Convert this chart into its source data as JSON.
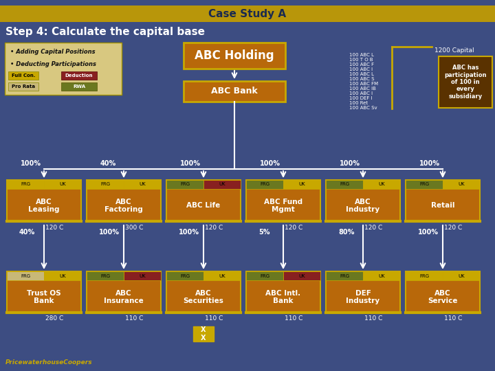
{
  "title": "Case Study A",
  "subtitle": "Step 4: Calculate the capital base",
  "bg_color": "#3d4d82",
  "title_bg": "#b8960a",
  "title_fg": "#1a2a50",
  "orange_box": "#b8680a",
  "dark_brown_box": "#5a3200",
  "legend_bg": "#d8c880",
  "gold": "#c8a800",
  "tan": "#c8b878",
  "dark_red": "#882020",
  "olive": "#6a7820",
  "bullet_text": [
    "Adding Capital Positions",
    "Deducting Participations"
  ],
  "holding_label": "ABC Holding",
  "bank_label": "ABC Bank",
  "note_lines": [
    "100 ABC L",
    "100 T O B",
    "100 ABC F",
    "100 ABC I",
    "100 ABC L",
    "100 ABC S",
    "100 ABC FM",
    "100 ABC IB",
    "100 ABC I",
    "100 DEF I",
    "100 Ret",
    "100 ABC Sv"
  ],
  "capital_label": "1200 Capital",
  "side_note": "ABC has\nparticipation\nof 100 in\nevery\nsubsidiary",
  "level1": [
    {
      "name": "ABC\nLeasing",
      "pct": "100%",
      "capital": "120 C",
      "frg": "#c8a800",
      "uk": "#c8a800"
    },
    {
      "name": "ABC\nFactoring",
      "pct": "40%",
      "capital": "300 C",
      "frg": "#c8a800",
      "uk": "#c8a800"
    },
    {
      "name": "ABC Life",
      "pct": "100%",
      "capital": "120 C",
      "frg": "#6a7820",
      "uk": "#882020"
    },
    {
      "name": "ABC Fund\nMgmt",
      "pct": "100%",
      "capital": "120 C",
      "frg": "#6a7820",
      "uk": "#c8a800"
    },
    {
      "name": "ABC\nIndustry",
      "pct": "100%",
      "capital": "120 C",
      "frg": "#6a7820",
      "uk": "#c8a800"
    },
    {
      "name": "Retail",
      "pct": "100%",
      "capital": "120 C",
      "frg": "#6a7820",
      "uk": "#c8a800"
    }
  ],
  "level2": [
    {
      "name": "Trust OS\nBank",
      "pct": "40%",
      "capital": "280 C",
      "frg": "#c8b878",
      "uk": "#c8a800",
      "parent_idx": 0
    },
    {
      "name": "ABC\nInsurance",
      "pct": "100%",
      "capital": "110 C",
      "frg": "#6a7820",
      "uk": "#882020",
      "parent_idx": 1
    },
    {
      "name": "ABC\nSecurities",
      "pct": "100%",
      "capital": "110 C",
      "frg": "#6a7820",
      "uk": "#c8a800",
      "parent_idx": 2
    },
    {
      "name": "ABC Intl.\nBank",
      "pct": "5%",
      "capital": "110 C",
      "frg": "#6a7820",
      "uk": "#882020",
      "parent_idx": 3
    },
    {
      "name": "DEF\nIndustry",
      "pct": "80%",
      "capital": "110 C",
      "frg": "#6a7820",
      "uk": "#c8a800",
      "parent_idx": 4
    },
    {
      "name": "ABC\nService",
      "pct": "100%",
      "capital": "110 C",
      "frg": "#c8a800",
      "uk": "#c8a800",
      "parent_idx": 5
    }
  ],
  "xx_label": "X\nX",
  "pwc_text": "PricewaterhouseCoopers"
}
